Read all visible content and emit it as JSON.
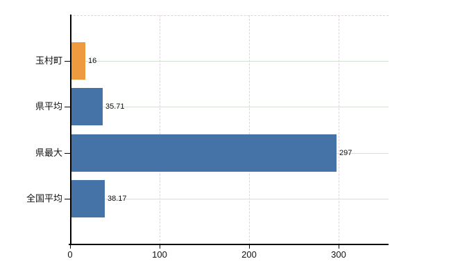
{
  "chart_data": {
    "type": "bar",
    "orientation": "horizontal",
    "title": "",
    "categories": [
      "玉村町",
      "県平均",
      "県最大",
      "全国平均"
    ],
    "values": [
      16,
      35.71,
      297,
      38.17
    ],
    "value_labels": [
      "16",
      "35.71",
      "297",
      "38.17"
    ],
    "bar_colors": [
      "#ed9b3e",
      "#4572a7",
      "#4572a7",
      "#4572a7"
    ],
    "highlight_category": "玉村町",
    "x_ticks": [
      0,
      100,
      200,
      300
    ],
    "x_tick_labels": [
      "0",
      "100",
      "200",
      "300"
    ],
    "xlim": [
      0,
      356
    ],
    "grid": {
      "horizontal": true,
      "vertical": true
    },
    "legend_position": "none"
  },
  "style": {
    "bar_blue": "#4572a7",
    "bar_orange": "#ed9b3e",
    "h_grid_color": "#d5e0d5",
    "v_grid_color": "#ded3dd",
    "axis_color": "#000000",
    "text_color": "#111111",
    "background": "#ffffff"
  }
}
